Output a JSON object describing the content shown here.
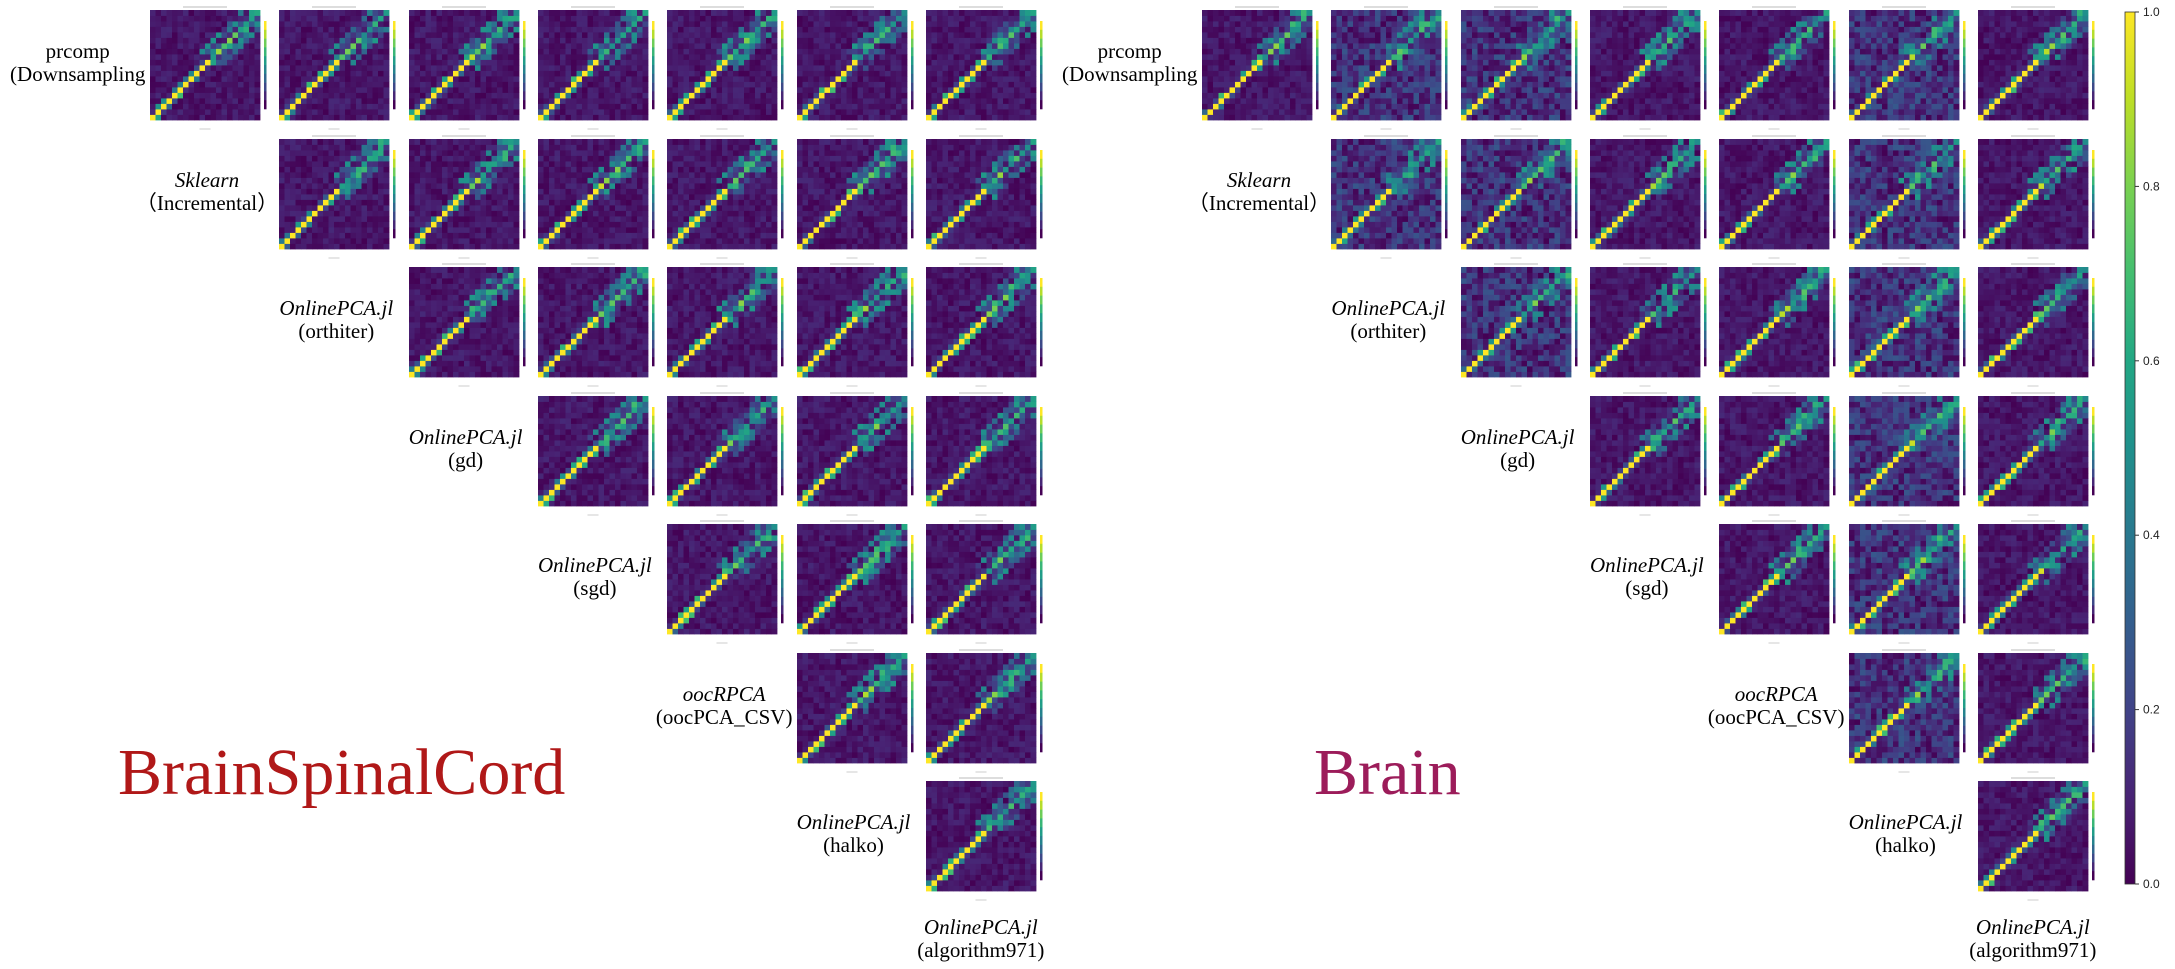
{
  "panels": [
    {
      "title": "BrainSpinalCord",
      "title_color": "#b01818",
      "row_labels": [
        {
          "lib": "prcomp",
          "sub": "(Downsampling",
          "lib_italic": false
        },
        {
          "lib": "Sklearn",
          "sub": "（Incremental）",
          "lib_italic": true
        },
        {
          "lib": "OnlinePCA.jl",
          "sub": "(orthiter)",
          "lib_italic": true
        },
        {
          "lib": "OnlinePCA.jl",
          "sub": "(gd)",
          "lib_italic": true
        },
        {
          "lib": "OnlinePCA.jl",
          "sub": "(sgd)",
          "lib_italic": true
        },
        {
          "lib": "oocRPCA",
          "sub": "(oocPCA_CSV)",
          "lib_italic": true
        },
        {
          "lib": "OnlinePCA.jl",
          "sub": "(halko)",
          "lib_italic": true
        },
        {
          "lib": "OnlinePCA.jl",
          "sub": "(algorithm971)",
          "lib_italic": true
        }
      ]
    },
    {
      "title": "Brain",
      "title_color": "#9c1c5a",
      "row_labels": [
        {
          "lib": "prcomp",
          "sub": "(Downsampling",
          "lib_italic": false
        },
        {
          "lib": "Sklearn",
          "sub": "（Incremental）",
          "lib_italic": true
        },
        {
          "lib": "OnlinePCA.jl",
          "sub": "(orthiter)",
          "lib_italic": true
        },
        {
          "lib": "OnlinePCA.jl",
          "sub": "(gd)",
          "lib_italic": true
        },
        {
          "lib": "OnlinePCA.jl",
          "sub": "(sgd)",
          "lib_italic": true
        },
        {
          "lib": "oocRPCA",
          "sub": "(oocPCA_CSV)",
          "lib_italic": true
        },
        {
          "lib": "OnlinePCA.jl",
          "sub": "(halko)",
          "lib_italic": true
        },
        {
          "lib": "OnlinePCA.jl",
          "sub": "(algorithm971)",
          "lib_italic": true
        }
      ]
    }
  ],
  "chart_data": {
    "type": "heatmap",
    "description_matrix": "upper-triangular grid of correlation heatmaps comparing PCA implementations",
    "grid_rows": 7,
    "grid_cols": 7,
    "heatmap_size": 20,
    "colorscale": "viridis",
    "colorbar": {
      "min": 0.0,
      "max": 1.0,
      "ticks": [
        "0.0",
        "0.2",
        "0.4",
        "0.6",
        "0.8",
        "1.0"
      ]
    },
    "colors": {
      "viridis_low": "#440154",
      "viridis_mid": "#21918c",
      "viridis_high": "#fde725"
    }
  }
}
